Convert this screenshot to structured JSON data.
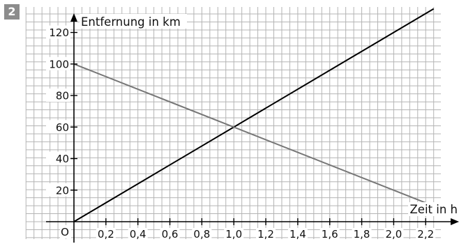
{
  "task_number": "2",
  "chart_data": {
    "type": "line",
    "xlabel": "Zeit in h",
    "ylabel": "Entfernung in km",
    "origin_label": "O",
    "x_ticks": [
      "0,2",
      "0,4",
      "0,6",
      "0,8",
      "1,0",
      "1,2",
      "1,4",
      "1,6",
      "1,8",
      "2,0",
      "2,2"
    ],
    "y_ticks": [
      "20",
      "40",
      "60",
      "80",
      "100",
      "120"
    ],
    "xlim": [
      0,
      2.4
    ],
    "ylim": [
      0,
      130
    ],
    "grid": true,
    "series": [
      {
        "color": "#000000",
        "x": [
          0,
          2.25
        ],
        "y": [
          0,
          135
        ]
      },
      {
        "color": "#777777",
        "x": [
          0,
          2.2
        ],
        "y": [
          100,
          12
        ]
      }
    ]
  }
}
